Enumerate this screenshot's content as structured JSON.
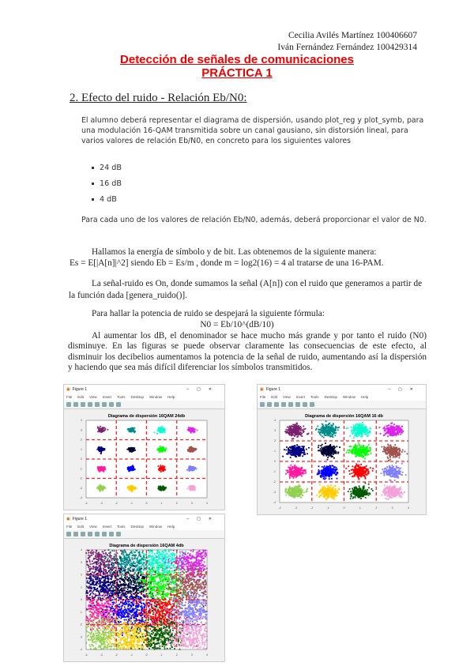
{
  "authors": [
    "Cecilia Avilés Martínez 100406607",
    "Iván Fernández Fernández 100429314"
  ],
  "title": [
    "Detección de señales de comunicaciones",
    "PRÁCTICA 1"
  ],
  "section": "2. Efecto del ruido - Relación Eb/N0:",
  "assignment": {
    "text": "El alumno deberá representar el diagrama de dispersión, usando plot_reg y plot_symb, para una modulación 16-QAM transmitida sobre un canal gausiano, sin distorsión lineal, para varios valores de relación Eb/N0, en concreto para los siguientes valores",
    "bullets": [
      "24 dB",
      "16 dB",
      "4 dB"
    ],
    "closing": "Para cada uno de los valores de relación Eb/N0, además, deberá proporcionar el valor de N0."
  },
  "body": {
    "p1a": "Hallamos la energía de símbolo y de bit. Las obtenemos de la siguiente manera:",
    "p1b": "Es = E[|A[n]|^2] siendo Eb = Es/m , donde m = log2(16) = 4 al tratarse de una 16-PAM.",
    "p2": "La señal-ruido es On, donde sumamos la señal (A[n]) con el ruido que generamos a partir de la función dada [genera_ruido()].",
    "p3": "Para hallar la potencia de ruido se despejará la siguiente fórmula:",
    "formula": "N0 = Eb/10^(dB/10)",
    "p4": "Al aumentar los dB, el denominador se hace mucho más grande y por tanto el ruido (N0) disminuye. En las figuras se puede observar claramente las consecuencias de este efecto, al disminuir los decibelios aumentamos la potencia de la señal de ruido, aumentando así la dispersión y haciendo que sea más difícil diferenciar los símbolos transmitidos."
  },
  "figure_window": {
    "title": "Figure 1",
    "menu": [
      "File",
      "Edit",
      "View",
      "Insert",
      "Tools",
      "Desktop",
      "Window",
      "Help"
    ]
  },
  "figures": [
    {
      "title": "Diagrama de dispersión 16QAM 24db",
      "ebn0_db": 24
    },
    {
      "title": "Diagrama de dispersión 16QAM 16 db",
      "ebn0_db": 16
    },
    {
      "title": "Diagrama de dispersión 16QAM 4db",
      "ebn0_db": 4
    }
  ],
  "constellation": {
    "levels": [
      -3,
      -1,
      1,
      3
    ],
    "axis_range": [
      -4,
      4
    ],
    "ticks": [
      "-4",
      "-3",
      "-2",
      "-1",
      "0",
      "1",
      "2",
      "3",
      "4"
    ],
    "decision_color": "#ff2020",
    "colors": [
      [
        "#7a1f6e",
        "#008b8b",
        "#00ffcc",
        "#dd22ee"
      ],
      [
        "#000080",
        "#000033",
        "#00ff00",
        "#a0524d"
      ],
      [
        "#ff1aa0",
        "#0000ff",
        "#ff0000",
        "#8080ff"
      ],
      [
        "#92d050",
        "#ffcc00",
        "#005a00",
        "#f4a0d8"
      ]
    ]
  }
}
